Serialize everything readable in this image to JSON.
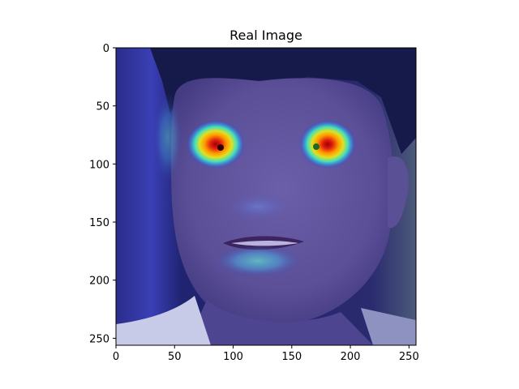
{
  "chart_data": {
    "type": "heatmap",
    "title": "Real Image",
    "xlabel": "",
    "ylabel": "",
    "xlim": [
      0,
      256
    ],
    "ylim": [
      256,
      0
    ],
    "y_inverted": true,
    "x_ticks": [
      0,
      50,
      100,
      150,
      200,
      250
    ],
    "y_ticks": [
      0,
      50,
      100,
      150,
      200,
      250
    ],
    "grid": false,
    "colormap": "jet",
    "content": "face photograph overlaid with an attention heatmap",
    "hotspots": [
      {
        "region": "left eye",
        "x": 85,
        "y": 85,
        "intensity": 1.0
      },
      {
        "region": "right eye",
        "x": 172,
        "y": 84,
        "intensity": 0.95
      },
      {
        "region": "left cheek band",
        "x": 44,
        "y": 70,
        "intensity": 0.35
      },
      {
        "region": "nose",
        "x": 120,
        "y": 140,
        "intensity": 0.28
      },
      {
        "region": "lips",
        "x": 120,
        "y": 180,
        "intensity": 0.45
      }
    ]
  }
}
